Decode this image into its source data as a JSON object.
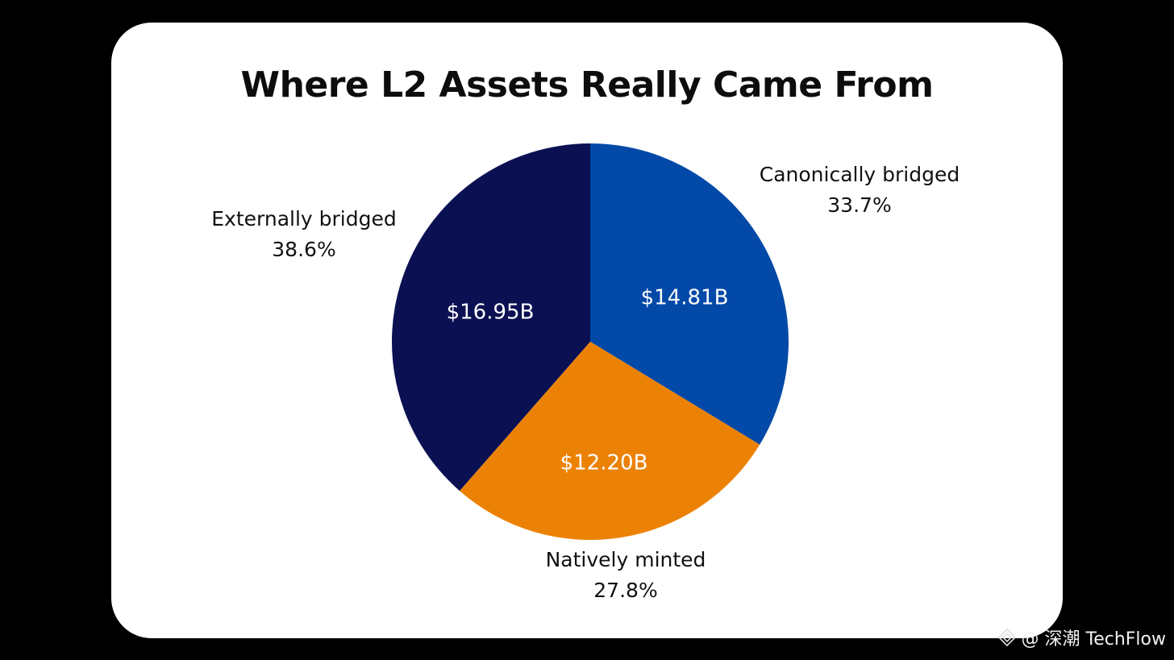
{
  "chart_data": {
    "type": "pie",
    "title": "Where L2 Assets Really Came From",
    "start_angle_deg": 0,
    "direction": "clockwise",
    "slices": [
      {
        "name": "Canonically bridged",
        "percent_label": "33.7%",
        "value_label": "$14.81B",
        "value": 14.81,
        "percent": 33.7,
        "color": "#0349A8"
      },
      {
        "name": "Natively minted",
        "percent_label": "27.8%",
        "value_label": "$12.20B",
        "value": 12.2,
        "percent": 27.8,
        "color": "#EC8205"
      },
      {
        "name": "Externally bridged",
        "percent_label": "38.6%",
        "value_label": "$16.95B",
        "value": 16.95,
        "percent": 38.6,
        "color": "#0A1052"
      }
    ]
  },
  "watermark": {
    "text": "@ 深潮 TechFlow",
    "icon": "diamond-logo-icon"
  }
}
